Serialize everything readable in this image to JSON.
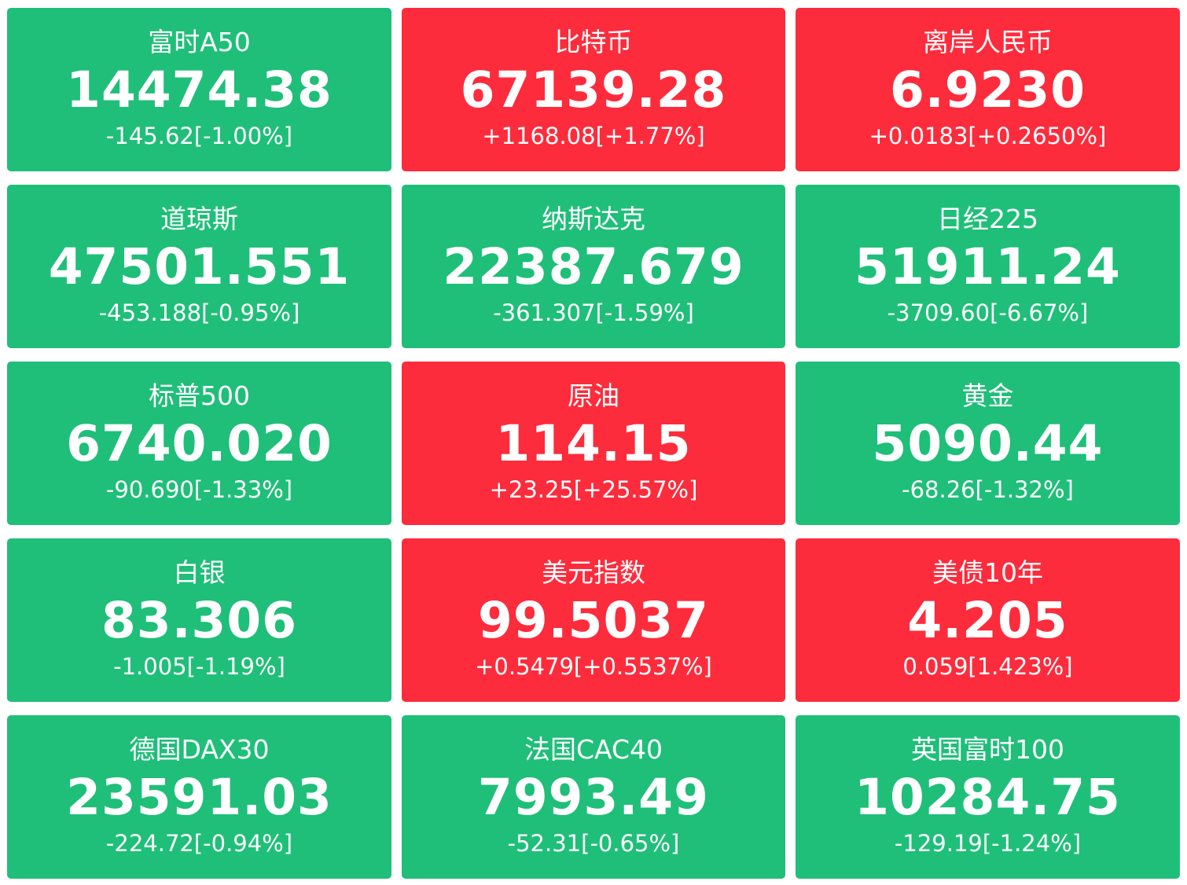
{
  "colors": {
    "down": "#1fbf79",
    "up": "#fc2c3c",
    "text": "#ffffff"
  },
  "tiles": [
    {
      "name": "富时A50",
      "price": "14474.38",
      "change": "-145.62[-1.00%]",
      "trend": "down"
    },
    {
      "name": "比特币",
      "price": "67139.28",
      "change": "+1168.08[+1.77%]",
      "trend": "up"
    },
    {
      "name": "离岸人民币",
      "price": "6.9230",
      "change": "+0.0183[+0.2650%]",
      "trend": "up"
    },
    {
      "name": "道琼斯",
      "price": "47501.551",
      "change": "-453.188[-0.95%]",
      "trend": "down"
    },
    {
      "name": "纳斯达克",
      "price": "22387.679",
      "change": "-361.307[-1.59%]",
      "trend": "down"
    },
    {
      "name": "日经225",
      "price": "51911.24",
      "change": "-3709.60[-6.67%]",
      "trend": "down"
    },
    {
      "name": "标普500",
      "price": "6740.020",
      "change": "-90.690[-1.33%]",
      "trend": "down"
    },
    {
      "name": "原油",
      "price": "114.15",
      "change": "+23.25[+25.57%]",
      "trend": "up"
    },
    {
      "name": "黄金",
      "price": "5090.44",
      "change": "-68.26[-1.32%]",
      "trend": "down"
    },
    {
      "name": "白银",
      "price": "83.306",
      "change": "-1.005[-1.19%]",
      "trend": "down"
    },
    {
      "name": "美元指数",
      "price": "99.5037",
      "change": "+0.5479[+0.5537%]",
      "trend": "up"
    },
    {
      "name": "美债10年",
      "price": "4.205",
      "change": "0.059[1.423%]",
      "trend": "up"
    },
    {
      "name": "德国DAX30",
      "price": "23591.03",
      "change": "-224.72[-0.94%]",
      "trend": "down"
    },
    {
      "name": "法国CAC40",
      "price": "7993.49",
      "change": "-52.31[-0.65%]",
      "trend": "down"
    },
    {
      "name": "英国富时100",
      "price": "10284.75",
      "change": "-129.19[-1.24%]",
      "trend": "down"
    }
  ]
}
